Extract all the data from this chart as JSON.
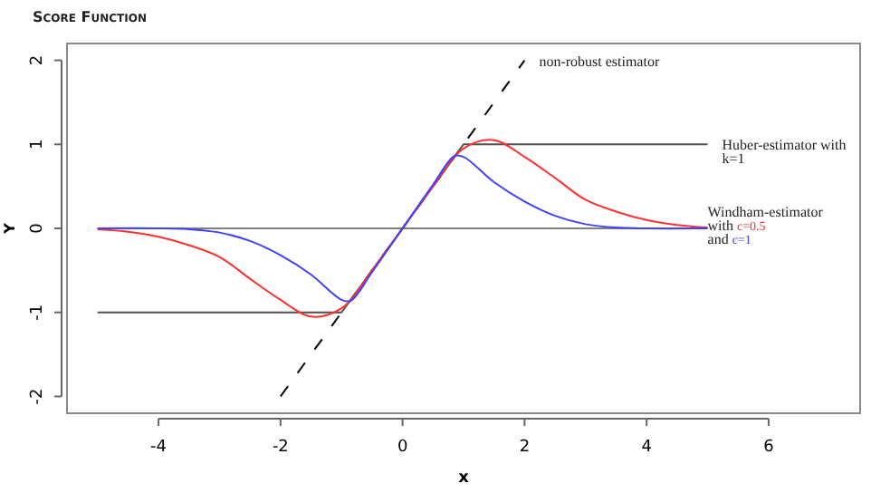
{
  "chart_data": {
    "type": "line",
    "title": "Score Function",
    "xlabel": "x",
    "ylabel": "Y",
    "xlim": [
      -5.5,
      7.5
    ],
    "ylim": [
      -2.2,
      2.2
    ],
    "xticks": [
      -4,
      -2,
      0,
      2,
      4,
      6
    ],
    "yticks": [
      -2,
      -1,
      0,
      1,
      2
    ],
    "grid": false,
    "legend": false,
    "annotations": [
      "Windham-estimator",
      "with",
      "and"
    ],
    "series": [
      {
        "color": "#808080",
        "x": [
          -5,
          5
        ],
        "values": [
          0,
          0
        ]
      },
      {
        "name": "non-robust estimator",
        "color": "#000000",
        "line_style": "dashed",
        "x": [
          -2,
          2
        ],
        "values": [
          -2,
          2
        ]
      },
      {
        "name": "Huber-estimator with k=1",
        "color": "#505050",
        "x": [
          -5,
          -1,
          1,
          5
        ],
        "values": [
          -1,
          -1,
          1,
          1
        ]
      },
      {
        "name": "c=0.5",
        "color": "#ff3030",
        "x": [
          -5,
          -4.5,
          -4,
          -3.5,
          -3,
          -2.5,
          -2,
          -1.5,
          -1,
          -0.5,
          0,
          0.5,
          1,
          1.5,
          2,
          2.5,
          3,
          3.5,
          4,
          4.5,
          5
        ],
        "values": [
          -0.01,
          -0.04,
          -0.1,
          -0.2,
          -0.34,
          -0.6,
          -0.85,
          -1.05,
          -0.95,
          -0.5,
          0,
          0.5,
          0.95,
          1.05,
          0.85,
          0.6,
          0.34,
          0.2,
          0.1,
          0.04,
          0.01
        ]
      },
      {
        "name": "c=1",
        "color": "#4040ff",
        "x": [
          -5,
          -4,
          -3.5,
          -3,
          -2.5,
          -2,
          -1.5,
          -1,
          -0.85,
          -0.5,
          0,
          0.5,
          0.85,
          1,
          1.5,
          2,
          2.5,
          3,
          3.5,
          4,
          5
        ],
        "values": [
          0,
          0,
          -0.01,
          -0.05,
          -0.15,
          -0.32,
          -0.55,
          -0.85,
          -0.86,
          -0.52,
          0,
          0.52,
          0.86,
          0.85,
          0.55,
          0.32,
          0.15,
          0.05,
          0.01,
          0,
          0
        ]
      }
    ]
  }
}
